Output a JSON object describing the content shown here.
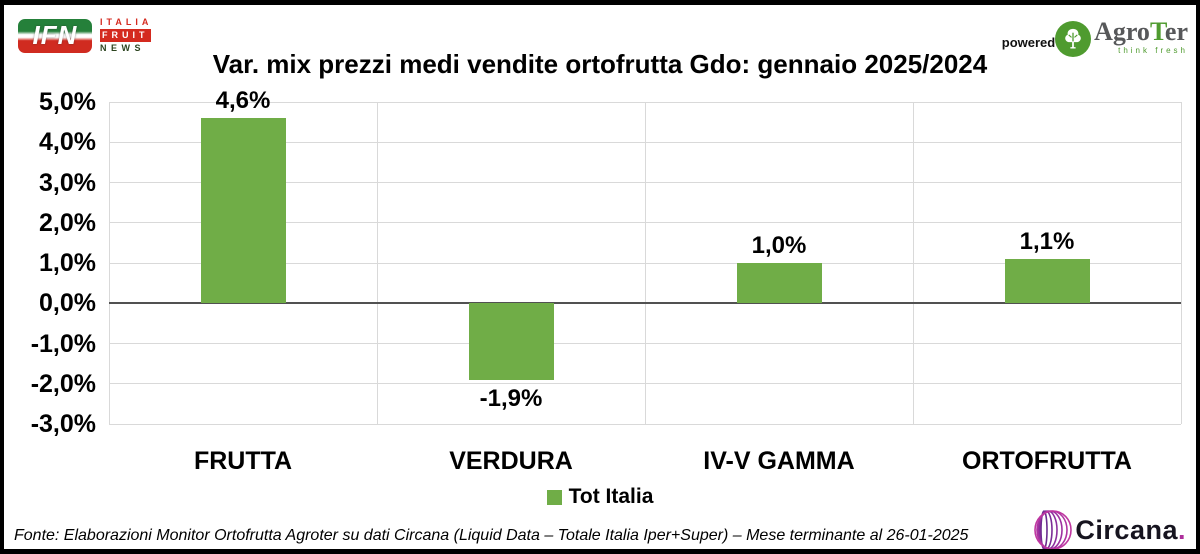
{
  "header": {
    "ifn": {
      "monogram": "IFN",
      "line1": "ITALIA",
      "line2": "FRUIT",
      "line3": "NEWS"
    },
    "powered_by": "powered by",
    "agroter": {
      "name_part1": "Agro",
      "name_part2": "T",
      "name_part3": "er",
      "tagline": "think fresh",
      "green": "#4f9b2f"
    }
  },
  "chart_data": {
    "type": "bar",
    "title": "Var. mix prezzi medi vendite ortofrutta Gdo: gennaio 2025/2024",
    "categories": [
      "FRUTTA",
      "VERDURA",
      "IV-V GAMMA",
      "ORTOFRUTTA"
    ],
    "values": [
      4.6,
      -1.9,
      1.0,
      1.1
    ],
    "data_labels": [
      "4,6%",
      "-1,9%",
      "1,0%",
      "1,1%"
    ],
    "series_name": "Tot Italia",
    "xlabel": "",
    "ylabel": "",
    "ylim": [
      -3,
      5
    ],
    "y_tick_step": 1,
    "y_tick_labels": [
      "5,0%",
      "4,0%",
      "3,0%",
      "2,0%",
      "1,0%",
      "0,0%",
      "-1,0%",
      "-2,0%",
      "-3,0%"
    ],
    "grid": true,
    "legend_position": "bottom",
    "bar_color": "#70AD47",
    "zero_line_color": "#515151",
    "gridline_color": "#d9d9d9"
  },
  "legend": {
    "label": "Tot Italia"
  },
  "footer": {
    "source": "Fonte: Elaborazioni Monitor Ortofrutta Agroter su dati Circana (Liquid Data – Totale Italia Iper+Super) – Mese terminante al 26-01-2025",
    "circana_name": "Circana",
    "circana_dot": "."
  }
}
